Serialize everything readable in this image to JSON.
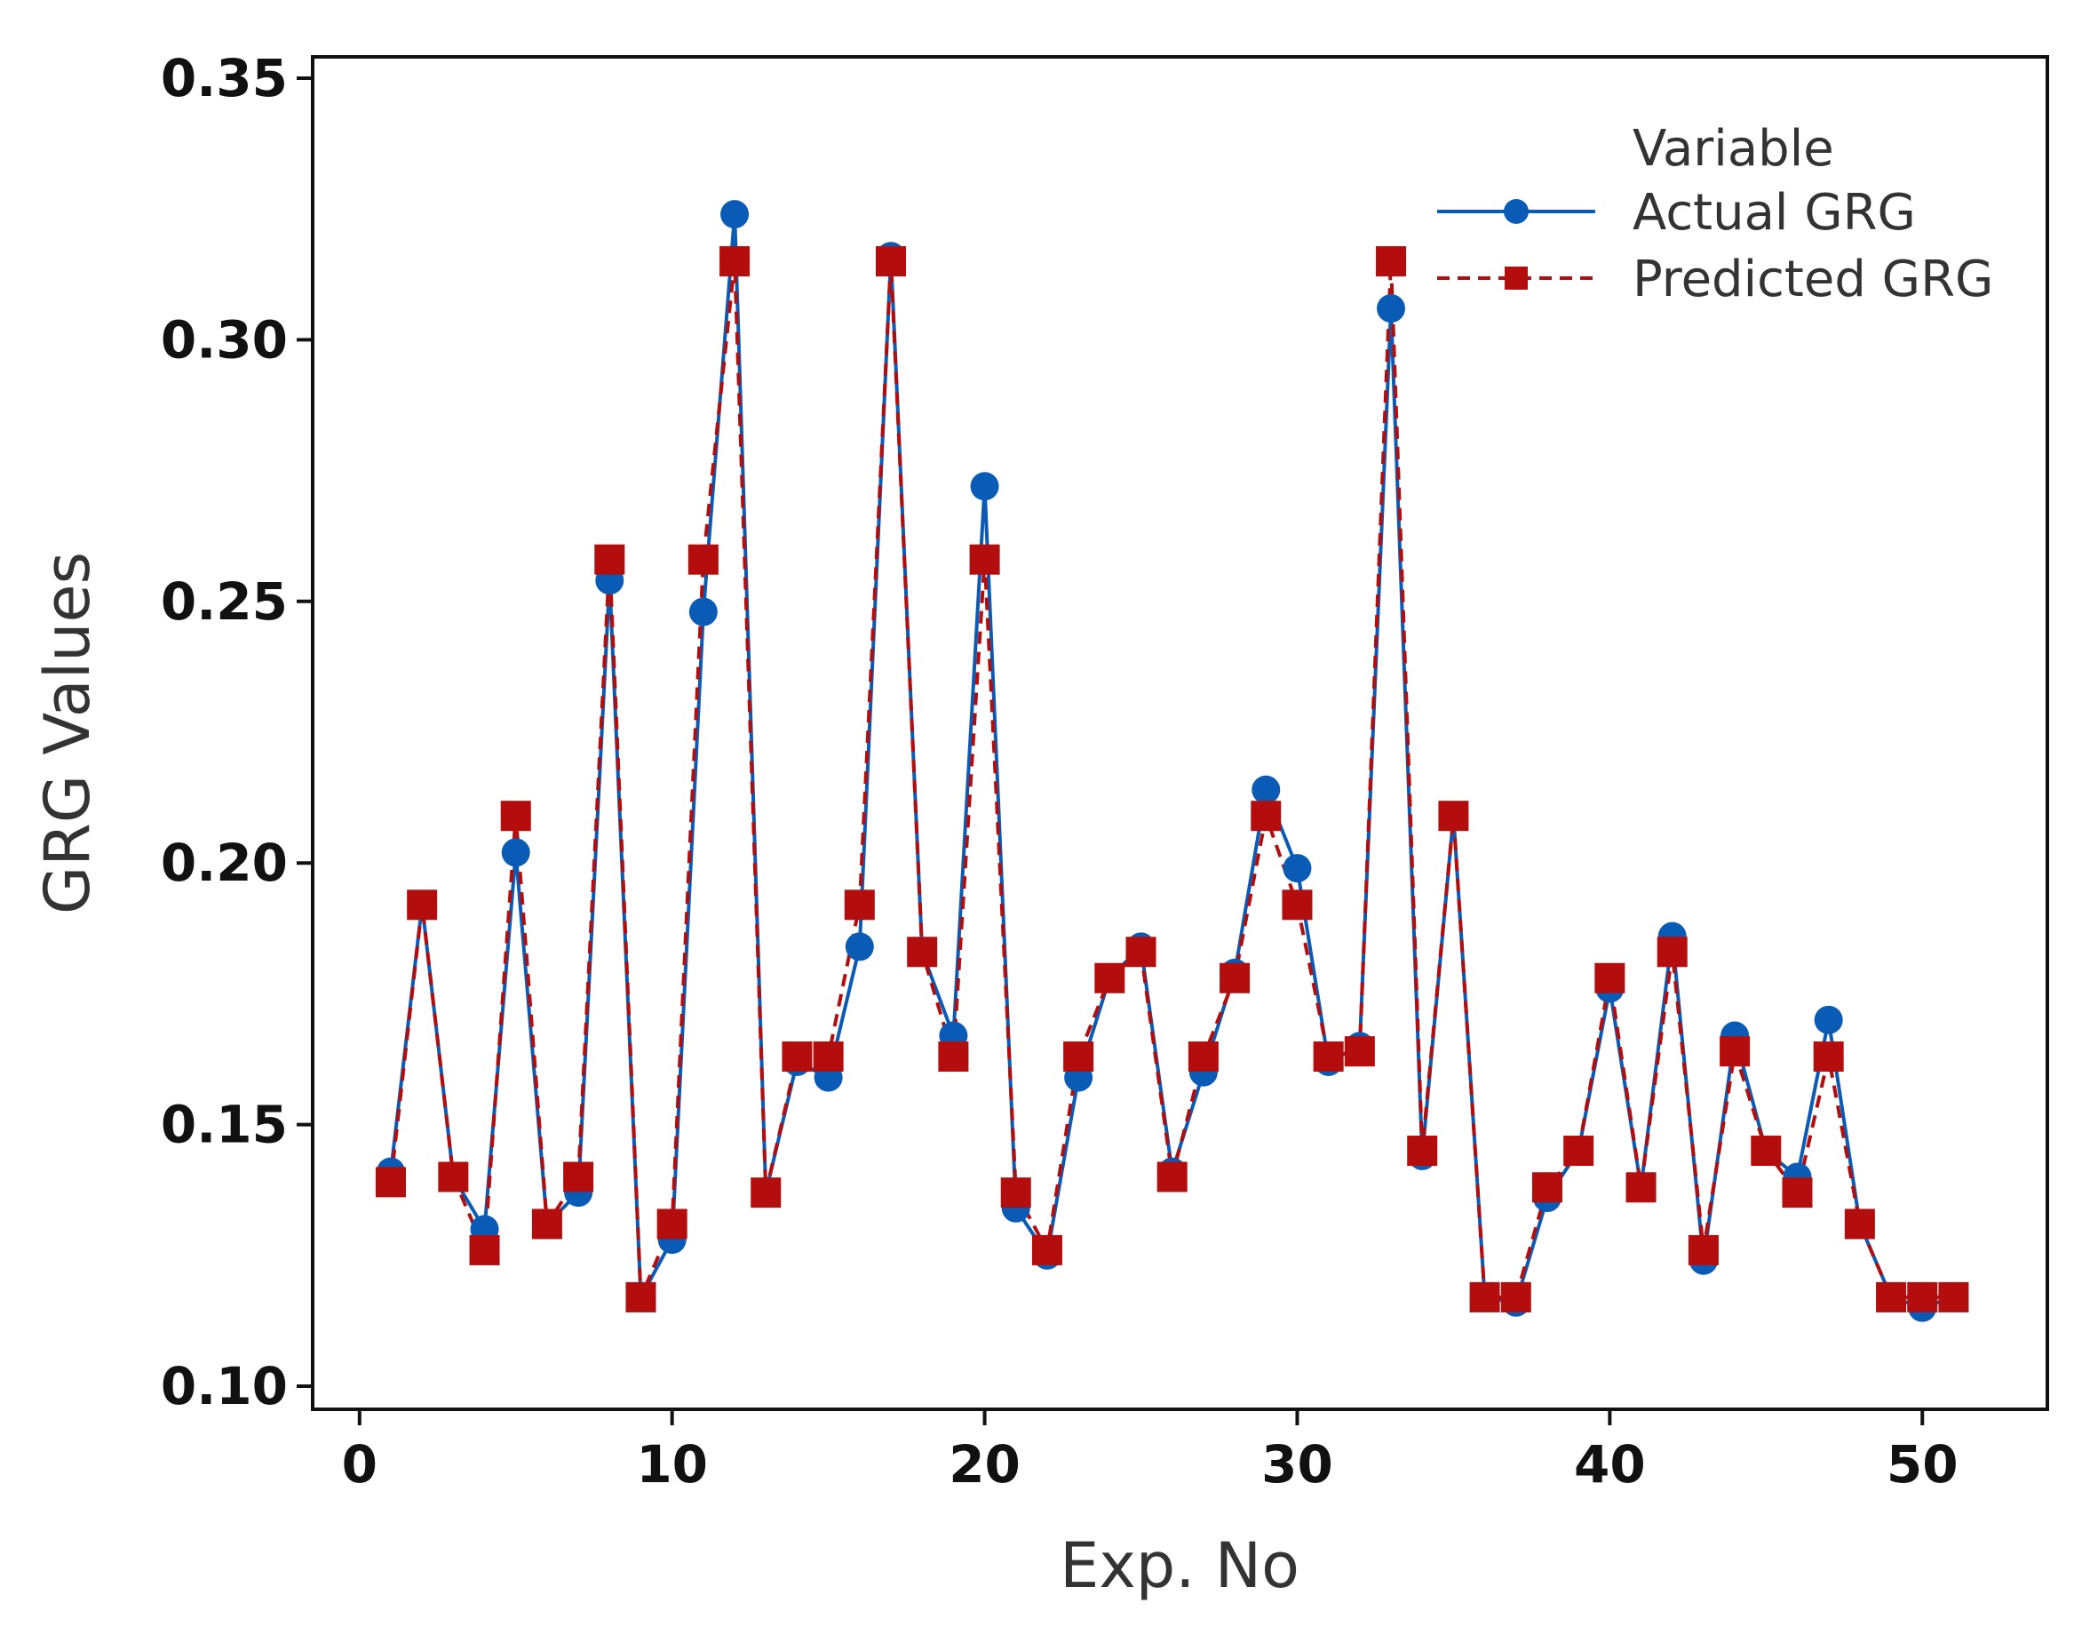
{
  "chart_data": {
    "type": "line",
    "title": "",
    "xlabel": "Exp. No",
    "ylabel": "GRG Values",
    "xlim": [
      -1.5,
      54
    ],
    "ylim": [
      0.1,
      0.35
    ],
    "xticks": [
      0,
      10,
      20,
      30,
      40,
      50
    ],
    "yticks": [
      0.1,
      0.15,
      0.2,
      0.25,
      0.3,
      0.35
    ],
    "grid": false,
    "legend": {
      "title": "Variable",
      "position": "top-right"
    },
    "x": [
      1,
      2,
      3,
      4,
      5,
      6,
      7,
      8,
      9,
      10,
      11,
      12,
      13,
      14,
      15,
      16,
      17,
      18,
      19,
      20,
      21,
      22,
      23,
      24,
      25,
      26,
      27,
      28,
      29,
      30,
      31,
      32,
      33,
      34,
      35,
      36,
      37,
      38,
      39,
      40,
      41,
      42,
      43,
      44,
      45,
      46,
      47,
      48,
      49,
      50,
      51
    ],
    "series": [
      {
        "name": "Actual GRG",
        "color": "#0a5bb5",
        "marker": "circle",
        "line": "solid",
        "values": [
          0.141,
          0.192,
          0.14,
          0.13,
          0.202,
          0.131,
          0.137,
          0.254,
          0.117,
          0.128,
          0.248,
          0.324,
          0.137,
          0.162,
          0.159,
          0.184,
          0.316,
          0.183,
          0.167,
          0.272,
          0.134,
          0.125,
          0.159,
          0.178,
          0.184,
          0.141,
          0.16,
          0.179,
          0.214,
          0.199,
          0.162,
          0.165,
          0.306,
          0.144,
          0.209,
          0.117,
          0.116,
          0.136,
          0.145,
          0.176,
          0.138,
          0.186,
          0.124,
          0.167,
          0.145,
          0.14,
          0.17,
          0.131,
          0.117,
          0.115,
          0.117
        ]
      },
      {
        "name": "Predicted GRG",
        "color": "#b40d0d",
        "marker": "square",
        "line": "dashed",
        "values": [
          0.139,
          0.192,
          0.14,
          0.126,
          0.209,
          0.131,
          0.14,
          0.258,
          0.117,
          0.131,
          0.258,
          0.315,
          0.137,
          0.163,
          0.163,
          0.192,
          0.315,
          0.183,
          0.163,
          0.258,
          0.137,
          0.126,
          0.163,
          0.178,
          0.183,
          0.14,
          0.163,
          0.178,
          0.209,
          0.192,
          0.163,
          0.164,
          0.315,
          0.145,
          0.209,
          0.117,
          0.117,
          0.138,
          0.145,
          0.178,
          0.138,
          0.183,
          0.126,
          0.164,
          0.145,
          0.137,
          0.163,
          0.131,
          0.117,
          0.117,
          0.117
        ]
      }
    ]
  }
}
